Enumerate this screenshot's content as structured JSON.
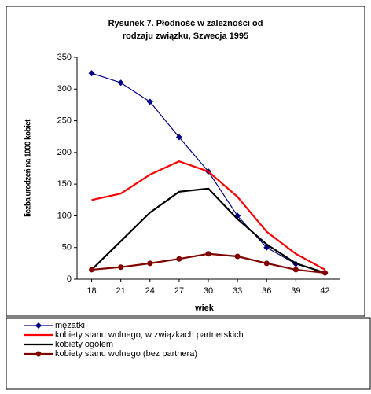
{
  "chart_data": {
    "type": "line",
    "title": [
      "Rysunek 7. Płodność w zależności od",
      "rodzaju związku, Szwecja 1995"
    ],
    "x_label": "wiek",
    "y_label": "liczba urodzeń na 1000 kobiet",
    "x": [
      18,
      21,
      24,
      27,
      30,
      33,
      36,
      39,
      42
    ],
    "xlim": [
      16.5,
      43.5
    ],
    "xticks": [
      18,
      21,
      24,
      27,
      30,
      33,
      36,
      39,
      42
    ],
    "ylim": [
      0,
      350
    ],
    "yticks": [
      0,
      50,
      100,
      150,
      200,
      250,
      300,
      350
    ],
    "grid": false,
    "legend": "bottom",
    "series": [
      {
        "name": "mężatki",
        "color": "#000080",
        "marker": "diamond",
        "values": [
          325,
          310,
          280,
          224,
          170,
          100,
          50,
          24,
          10
        ]
      },
      {
        "name": "kobiety stanu wolnego, w związkach partnerskich",
        "color": "#ff0000",
        "marker": "none",
        "values": [
          125,
          135,
          165,
          186,
          170,
          130,
          75,
          40,
          15
        ]
      },
      {
        "name": "kobiety ogółem",
        "color": "#000000",
        "marker": "none",
        "values": [
          15,
          60,
          105,
          138,
          143,
          95,
          55,
          25,
          10
        ]
      },
      {
        "name": "kobiety stanu wolnego (bez partnera)",
        "color": "#800000",
        "marker": "circle",
        "values": [
          15,
          19,
          25,
          32,
          40,
          36,
          25,
          15,
          10
        ]
      }
    ]
  }
}
